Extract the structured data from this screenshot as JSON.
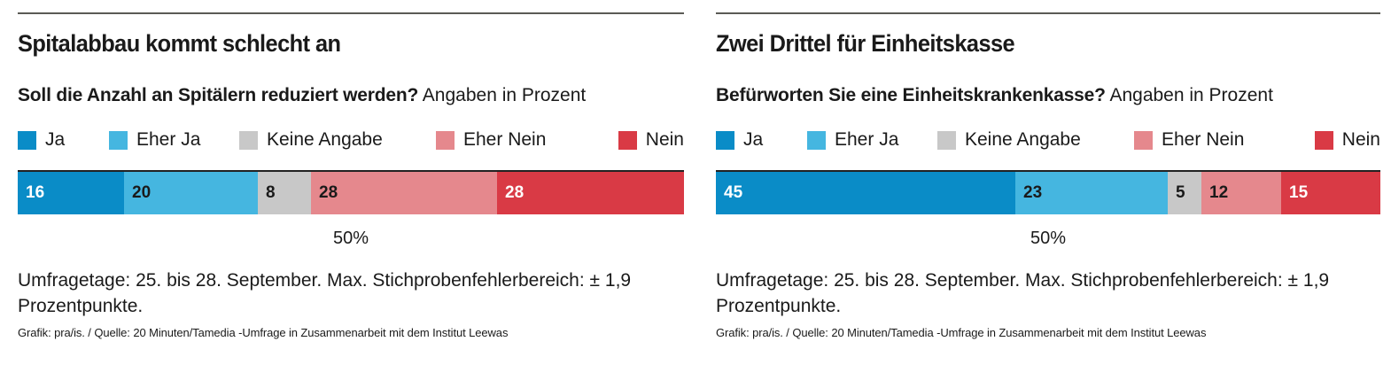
{
  "colors": {
    "ja": "#0a8cc7",
    "eher_ja": "#45b6e0",
    "keine_angabe": "#c8c8c8",
    "eher_nein": "#e5888d",
    "nein": "#d93a45",
    "label_light": "#ffffff",
    "label_dark": "#1a1a1a"
  },
  "legend": [
    {
      "label": "Ja",
      "color_key": "ja"
    },
    {
      "label": "Eher Ja",
      "color_key": "eher_ja"
    },
    {
      "label": "Keine Angabe",
      "color_key": "keine_angabe"
    },
    {
      "label": "Eher Nein",
      "color_key": "eher_nein"
    },
    {
      "label": "Nein",
      "color_key": "nein"
    }
  ],
  "chart_data": [
    {
      "type": "bar",
      "orientation": "horizontal-stacked",
      "title": "Spitalabbau kommt schlecht an",
      "subtitle_bold": "Soll die Anzahl an Spitälern reduziert werden?",
      "subtitle_rest": " Angaben in Prozent",
      "categories": [
        "Ja",
        "Eher Ja",
        "Keine Angabe",
        "Eher Nein",
        "Nein"
      ],
      "values": [
        16,
        20,
        8,
        28,
        28
      ],
      "value_labels": [
        "16",
        "20",
        "8",
        "28",
        "28"
      ],
      "label_styles": [
        "light",
        "dark",
        "dark",
        "dark",
        "light"
      ],
      "xlim": [
        0,
        100
      ],
      "midpoint_label": "50%",
      "note": "Umfragetage: 25. bis 28. September. Max. Stichprobenfehlerbereich: ± 1,9 Prozentpunkte.",
      "credit": "Grafik: pra/is. / Quelle: 20 Minuten/Tamedia -Umfrage in Zusammenarbeit mit dem Institut Leewas"
    },
    {
      "type": "bar",
      "orientation": "horizontal-stacked",
      "title": "Zwei Drittel für Einheitskasse",
      "subtitle_bold": "Befürworten Sie eine Einheitskrankenkasse?",
      "subtitle_rest": " Angaben in Prozent",
      "categories": [
        "Ja",
        "Eher Ja",
        "Keine Angabe",
        "Eher Nein",
        "Nein"
      ],
      "values": [
        45,
        23,
        5,
        12,
        15
      ],
      "value_labels": [
        "45",
        "23",
        "5",
        "12",
        "15"
      ],
      "label_styles": [
        "light",
        "dark",
        "dark",
        "dark",
        "light"
      ],
      "xlim": [
        0,
        100
      ],
      "midpoint_label": "50%",
      "note": "Umfragetage: 25. bis 28. September. Max. Stichprobenfehlerbereich: ± 1,9 Prozentpunkte.",
      "credit": "Grafik: pra/is. / Quelle: 20 Minuten/Tamedia -Umfrage in Zusammenarbeit mit dem Institut Leewas"
    }
  ]
}
